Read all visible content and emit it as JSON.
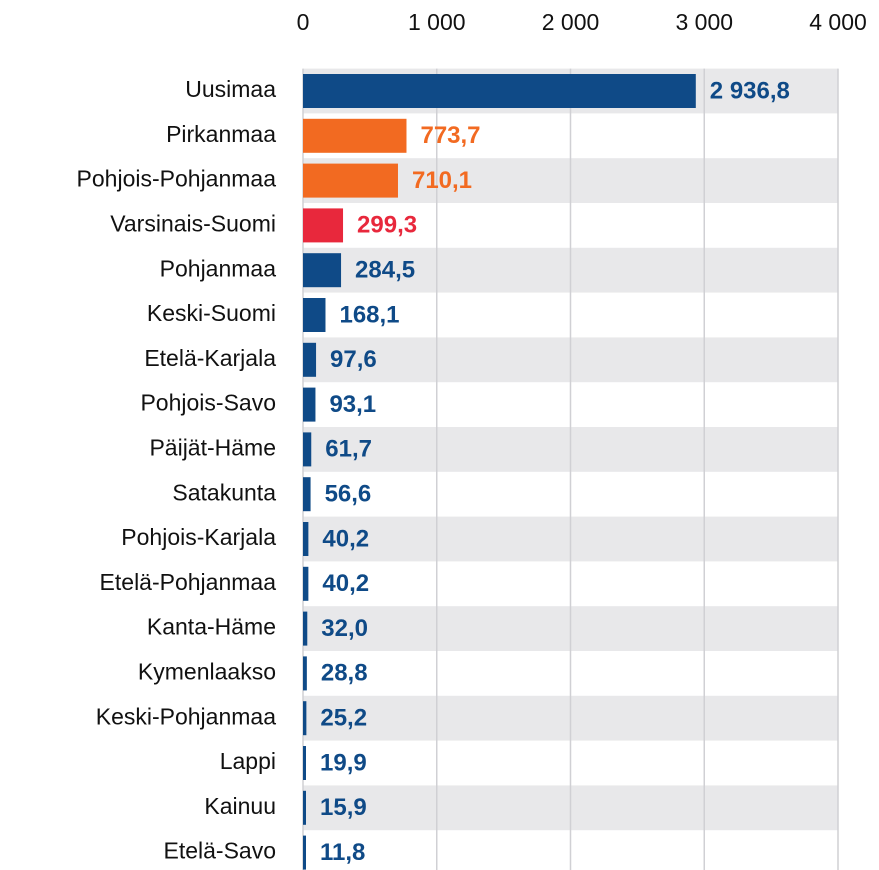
{
  "chart_data": {
    "type": "hbar",
    "categories": [
      "Uusimaa",
      "Pirkanmaa",
      "Pohjois-Pohjanmaa",
      "Varsinais-Suomi",
      "Pohjanmaa",
      "Keski-Suomi",
      "Etelä-Karjala",
      "Pohjois-Savo",
      "Päijät-Häme",
      "Satakunta",
      "Pohjois-Karjala",
      "Etelä-Pohjanmaa",
      "Kanta-Häme",
      "Kymenlaakso",
      "Keski-Pohjanmaa",
      "Lappi",
      "Kainuu",
      "Etelä-Savo"
    ],
    "values": [
      2936.8,
      773.7,
      710.1,
      299.3,
      284.5,
      168.1,
      97.6,
      93.1,
      61.7,
      56.6,
      40.2,
      40.2,
      32.0,
      28.8,
      25.2,
      19.9,
      15.9,
      11.8
    ],
    "value_labels": [
      "2 936,8",
      "773,7",
      "710,1",
      "299,3",
      "284,5",
      "168,1",
      "97,6",
      "93,1",
      "61,7",
      "56,6",
      "40,2",
      "40,2",
      "32,0",
      "28,8",
      "25,2",
      "19,9",
      "15,9",
      "11,8"
    ],
    "colors": [
      "#0f4a87",
      "#f26a21",
      "#f26a21",
      "#e8283c",
      "#0f4a87",
      "#0f4a87",
      "#0f4a87",
      "#0f4a87",
      "#0f4a87",
      "#0f4a87",
      "#0f4a87",
      "#0f4a87",
      "#0f4a87",
      "#0f4a87",
      "#0f4a87",
      "#0f4a87",
      "#0f4a87",
      "#0f4a87"
    ],
    "xlim": [
      0,
      4000
    ],
    "xticks": [
      0,
      {
        "value": 1000,
        "label": "1 000"
      },
      {
        "value": 2000,
        "label": "2 000"
      },
      {
        "value": 3000,
        "label": "3 000"
      },
      {
        "value": 4000,
        "label": "4 000"
      }
    ],
    "grid": true
  }
}
